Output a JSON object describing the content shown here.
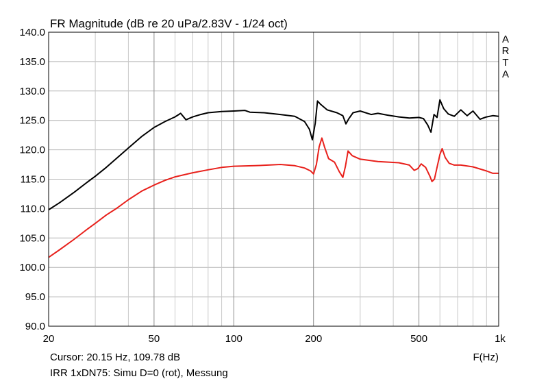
{
  "chart_data": {
    "type": "line",
    "title": "FR Magnitude (dB re 20 uPa/2.83V - 1/24 oct)",
    "xlabel": "F(Hz)",
    "ylabel": "",
    "x_scale": "log",
    "xlim": [
      20,
      1000
    ],
    "ylim": [
      90,
      140
    ],
    "grid": true,
    "x_tick_labels": [
      {
        "v": 20,
        "label": "20"
      },
      {
        "v": 50,
        "label": "50"
      },
      {
        "v": 100,
        "label": "100"
      },
      {
        "v": 200,
        "label": "200"
      },
      {
        "v": 500,
        "label": "500"
      },
      {
        "v": 1000,
        "label": "1k"
      }
    ],
    "y_ticks": [
      90,
      95,
      100,
      105,
      110,
      115,
      120,
      125,
      130,
      135,
      140
    ],
    "y_tick_labels": [
      "90.0",
      "95.0",
      "100.0",
      "105.0",
      "110.0",
      "115.0",
      "120.0",
      "125.0",
      "130.0",
      "135.0",
      "140.0"
    ],
    "series": [
      {
        "color": "#000000",
        "points": [
          [
            20,
            109.8
          ],
          [
            22,
            111.0
          ],
          [
            25,
            112.8
          ],
          [
            28,
            114.5
          ],
          [
            30,
            115.5
          ],
          [
            33,
            117.0
          ],
          [
            36,
            118.5
          ],
          [
            40,
            120.3
          ],
          [
            45,
            122.3
          ],
          [
            50,
            123.8
          ],
          [
            55,
            124.8
          ],
          [
            60,
            125.6
          ],
          [
            63,
            126.2
          ],
          [
            66,
            125.1
          ],
          [
            70,
            125.6
          ],
          [
            75,
            126.0
          ],
          [
            80,
            126.3
          ],
          [
            90,
            126.5
          ],
          [
            100,
            126.6
          ],
          [
            110,
            126.7
          ],
          [
            115,
            126.4
          ],
          [
            130,
            126.3
          ],
          [
            150,
            126.0
          ],
          [
            170,
            125.7
          ],
          [
            185,
            124.8
          ],
          [
            193,
            123.5
          ],
          [
            198,
            121.7
          ],
          [
            203,
            124.5
          ],
          [
            207,
            128.3
          ],
          [
            212,
            127.8
          ],
          [
            225,
            126.8
          ],
          [
            245,
            126.3
          ],
          [
            258,
            125.8
          ],
          [
            265,
            124.4
          ],
          [
            272,
            125.3
          ],
          [
            282,
            126.3
          ],
          [
            300,
            126.6
          ],
          [
            330,
            126.0
          ],
          [
            350,
            126.2
          ],
          [
            380,
            125.9
          ],
          [
            420,
            125.6
          ],
          [
            460,
            125.4
          ],
          [
            500,
            125.5
          ],
          [
            520,
            125.3
          ],
          [
            540,
            124.2
          ],
          [
            555,
            123.0
          ],
          [
            570,
            126.0
          ],
          [
            585,
            125.5
          ],
          [
            600,
            128.5
          ],
          [
            620,
            127.0
          ],
          [
            645,
            126.1
          ],
          [
            680,
            125.7
          ],
          [
            720,
            126.8
          ],
          [
            760,
            125.8
          ],
          [
            800,
            126.6
          ],
          [
            850,
            125.2
          ],
          [
            900,
            125.6
          ],
          [
            950,
            125.8
          ],
          [
            1000,
            125.7
          ]
        ]
      },
      {
        "color": "#e8201b",
        "points": [
          [
            20,
            101.7
          ],
          [
            22,
            103.0
          ],
          [
            25,
            104.8
          ],
          [
            28,
            106.5
          ],
          [
            30,
            107.5
          ],
          [
            33,
            108.9
          ],
          [
            36,
            110.0
          ],
          [
            40,
            111.5
          ],
          [
            45,
            113.0
          ],
          [
            50,
            114.0
          ],
          [
            55,
            114.8
          ],
          [
            60,
            115.4
          ],
          [
            70,
            116.1
          ],
          [
            80,
            116.6
          ],
          [
            90,
            117.0
          ],
          [
            100,
            117.2
          ],
          [
            120,
            117.3
          ],
          [
            150,
            117.5
          ],
          [
            170,
            117.3
          ],
          [
            185,
            116.9
          ],
          [
            195,
            116.4
          ],
          [
            200,
            115.9
          ],
          [
            205,
            117.5
          ],
          [
            210,
            120.5
          ],
          [
            215,
            122.0
          ],
          [
            220,
            120.5
          ],
          [
            228,
            118.5
          ],
          [
            240,
            117.9
          ],
          [
            250,
            116.3
          ],
          [
            258,
            115.3
          ],
          [
            264,
            117.2
          ],
          [
            270,
            119.8
          ],
          [
            280,
            119.0
          ],
          [
            300,
            118.4
          ],
          [
            350,
            118.0
          ],
          [
            420,
            117.8
          ],
          [
            460,
            117.4
          ],
          [
            480,
            116.5
          ],
          [
            495,
            116.8
          ],
          [
            510,
            117.6
          ],
          [
            530,
            117.0
          ],
          [
            550,
            115.5
          ],
          [
            560,
            114.6
          ],
          [
            572,
            115.0
          ],
          [
            585,
            117.0
          ],
          [
            600,
            119.2
          ],
          [
            612,
            120.2
          ],
          [
            628,
            118.7
          ],
          [
            650,
            117.7
          ],
          [
            680,
            117.4
          ],
          [
            720,
            117.4
          ],
          [
            800,
            117.1
          ],
          [
            900,
            116.4
          ],
          [
            950,
            116.0
          ],
          [
            1000,
            116.0
          ]
        ]
      }
    ]
  },
  "side_label": [
    "A",
    "R",
    "T",
    "A"
  ],
  "footer": {
    "cursor": "Cursor: 20.15 Hz, 109.78 dB",
    "caption": "IRR 1xDN75: Simu D=0 (rot), Messung"
  }
}
